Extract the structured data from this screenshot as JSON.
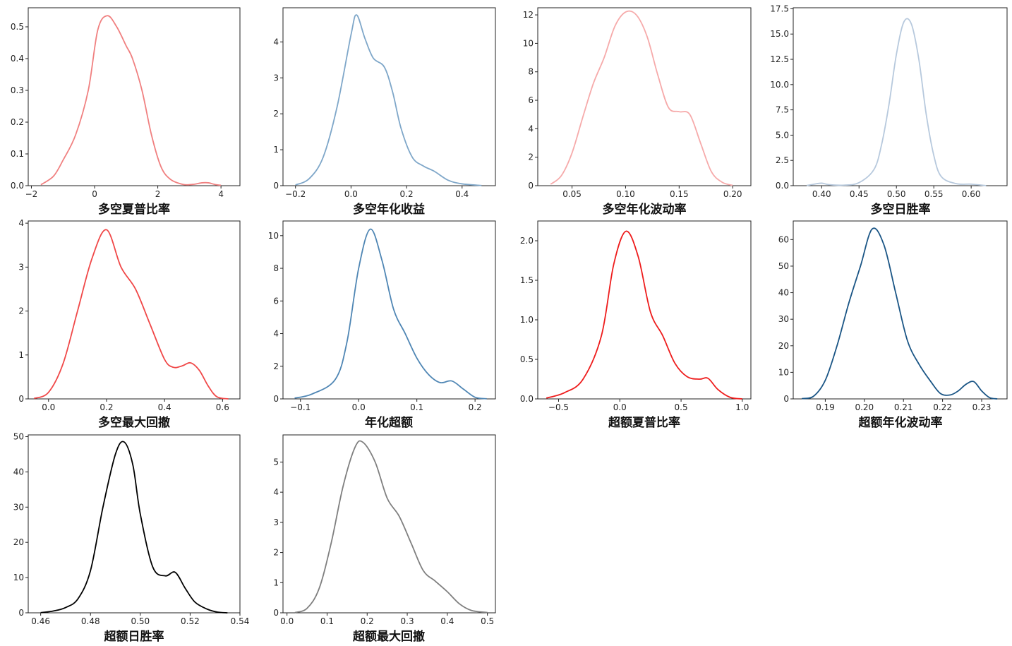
{
  "chart_data": [
    {
      "type": "line",
      "title": "",
      "xlabel": "多空夏普比率",
      "ylabel": "",
      "color": "#f08080",
      "xlim": [
        -2.1,
        4.6
      ],
      "ylim": [
        0,
        0.56
      ],
      "xticks": [
        {
          "v": -2,
          "label": "−2"
        },
        {
          "v": 0,
          "label": "0"
        },
        {
          "v": 2,
          "label": "2"
        },
        {
          "v": 4,
          "label": "4"
        }
      ],
      "yticks": [
        {
          "v": 0,
          "label": "0.0"
        },
        {
          "v": 0.1,
          "label": "0.1"
        },
        {
          "v": 0.2,
          "label": "0.2"
        },
        {
          "v": 0.3,
          "label": "0.3"
        },
        {
          "v": 0.4,
          "label": "0.4"
        },
        {
          "v": 0.5,
          "label": "0.5"
        }
      ],
      "x": [
        -1.7,
        -1.3,
        -1.0,
        -0.6,
        -0.2,
        0.1,
        0.4,
        0.7,
        1.0,
        1.2,
        1.5,
        1.8,
        2.1,
        2.4,
        2.8,
        3.1,
        3.4,
        3.6,
        3.8,
        4.0
      ],
      "y": [
        0.003,
        0.03,
        0.08,
        0.16,
        0.3,
        0.49,
        0.535,
        0.5,
        0.44,
        0.4,
        0.3,
        0.16,
        0.06,
        0.02,
        0.004,
        0.004,
        0.009,
        0.009,
        0.004,
        0.001
      ]
    },
    {
      "type": "line",
      "title": "",
      "xlabel": "多空年化收益",
      "ylabel": "",
      "color": "#7fa7c9",
      "xlim": [
        -0.245,
        0.52
      ],
      "ylim": [
        0,
        4.95
      ],
      "xticks": [
        {
          "v": -0.2,
          "label": "−0.2"
        },
        {
          "v": 0.0,
          "label": "0.0"
        },
        {
          "v": 0.2,
          "label": "0.2"
        },
        {
          "v": 0.4,
          "label": "0.4"
        }
      ],
      "yticks": [
        {
          "v": 0,
          "label": "0"
        },
        {
          "v": 1,
          "label": "1"
        },
        {
          "v": 2,
          "label": "2"
        },
        {
          "v": 3,
          "label": "3"
        },
        {
          "v": 4,
          "label": "4"
        }
      ],
      "x": [
        -0.2,
        -0.15,
        -0.1,
        -0.05,
        0.0,
        0.02,
        0.05,
        0.08,
        0.12,
        0.15,
        0.18,
        0.22,
        0.26,
        0.3,
        0.35,
        0.4,
        0.47
      ],
      "y": [
        0.02,
        0.2,
        0.8,
        2.2,
        4.2,
        4.75,
        4.1,
        3.55,
        3.3,
        2.6,
        1.6,
        0.8,
        0.55,
        0.4,
        0.15,
        0.05,
        0.005
      ]
    },
    {
      "type": "line",
      "title": "",
      "xlabel": "多空年化波动率",
      "ylabel": "",
      "color": "#f6aaaa",
      "xlim": [
        0.018,
        0.217
      ],
      "ylim": [
        0,
        12.5
      ],
      "xticks": [
        {
          "v": 0.05,
          "label": "0.05"
        },
        {
          "v": 0.1,
          "label": "0.10"
        },
        {
          "v": 0.15,
          "label": "0.15"
        },
        {
          "v": 0.2,
          "label": "0.20"
        }
      ],
      "yticks": [
        {
          "v": 0,
          "label": "0"
        },
        {
          "v": 2,
          "label": "2"
        },
        {
          "v": 4,
          "label": "4"
        },
        {
          "v": 6,
          "label": "6"
        },
        {
          "v": 8,
          "label": "8"
        },
        {
          "v": 10,
          "label": "10"
        },
        {
          "v": 12,
          "label": "12"
        }
      ],
      "x": [
        0.03,
        0.04,
        0.05,
        0.06,
        0.07,
        0.08,
        0.09,
        0.1,
        0.11,
        0.12,
        0.13,
        0.14,
        0.15,
        0.16,
        0.17,
        0.18,
        0.19,
        0.2
      ],
      "y": [
        0.1,
        0.7,
        2.3,
        4.8,
        7.2,
        9.0,
        11.2,
        12.2,
        12.0,
        10.5,
        7.8,
        5.5,
        5.2,
        5.0,
        3.0,
        1.0,
        0.25,
        0.02
      ]
    },
    {
      "type": "line",
      "title": "",
      "xlabel": "多空日胜率",
      "ylabel": "",
      "color": "#b7c9dd",
      "xlim": [
        0.362,
        0.648
      ],
      "ylim": [
        0,
        17.6
      ],
      "xticks": [
        {
          "v": 0.4,
          "label": "0.40"
        },
        {
          "v": 0.45,
          "label": "0.45"
        },
        {
          "v": 0.5,
          "label": "0.50"
        },
        {
          "v": 0.55,
          "label": "0.55"
        },
        {
          "v": 0.6,
          "label": "0.60"
        }
      ],
      "yticks": [
        {
          "v": 0,
          "label": "0.0"
        },
        {
          "v": 2.5,
          "label": "2.5"
        },
        {
          "v": 5,
          "label": "5.0"
        },
        {
          "v": 7.5,
          "label": "7.5"
        },
        {
          "v": 10,
          "label": "10.0"
        },
        {
          "v": 12.5,
          "label": "12.5"
        },
        {
          "v": 15,
          "label": "15.0"
        },
        {
          "v": 17.5,
          "label": "17.5"
        }
      ],
      "x": [
        0.38,
        0.39,
        0.4,
        0.41,
        0.43,
        0.45,
        0.47,
        0.48,
        0.49,
        0.5,
        0.51,
        0.52,
        0.53,
        0.54,
        0.55,
        0.56,
        0.58,
        0.6,
        0.62
      ],
      "y": [
        0.02,
        0.15,
        0.25,
        0.1,
        0.05,
        0.3,
        1.6,
        4.0,
        8.0,
        13.0,
        16.2,
        16.0,
        12.5,
        7.0,
        3.0,
        0.9,
        0.2,
        0.15,
        0.01
      ]
    },
    {
      "type": "line",
      "title": "",
      "xlabel": "多空最大回撤",
      "ylabel": "",
      "color": "#f04848",
      "xlim": [
        -0.07,
        0.66
      ],
      "ylim": [
        0,
        4.05
      ],
      "xticks": [
        {
          "v": 0.0,
          "label": "0.0"
        },
        {
          "v": 0.2,
          "label": "0.2"
        },
        {
          "v": 0.4,
          "label": "0.4"
        },
        {
          "v": 0.6,
          "label": "0.6"
        }
      ],
      "yticks": [
        {
          "v": 0,
          "label": "0"
        },
        {
          "v": 1,
          "label": "1"
        },
        {
          "v": 2,
          "label": "2"
        },
        {
          "v": 3,
          "label": "3"
        },
        {
          "v": 4,
          "label": "4"
        }
      ],
      "x": [
        -0.05,
        0.0,
        0.05,
        0.1,
        0.15,
        0.2,
        0.25,
        0.3,
        0.35,
        0.4,
        0.43,
        0.46,
        0.49,
        0.52,
        0.55,
        0.58,
        0.62
      ],
      "y": [
        0.01,
        0.15,
        0.8,
        2.0,
        3.2,
        3.85,
        3.0,
        2.5,
        1.7,
        0.9,
        0.72,
        0.75,
        0.82,
        0.65,
        0.3,
        0.05,
        0.0
      ]
    },
    {
      "type": "line",
      "title": "",
      "xlabel": "年化超额",
      "ylabel": "",
      "color": "#4f86b4",
      "xlim": [
        -0.13,
        0.235
      ],
      "ylim": [
        0,
        10.9
      ],
      "xticks": [
        {
          "v": -0.1,
          "label": "−0.1"
        },
        {
          "v": 0.0,
          "label": "0.0"
        },
        {
          "v": 0.1,
          "label": "0.1"
        },
        {
          "v": 0.2,
          "label": "0.2"
        }
      ],
      "yticks": [
        {
          "v": 0,
          "label": "0"
        },
        {
          "v": 2,
          "label": "2"
        },
        {
          "v": 4,
          "label": "4"
        },
        {
          "v": 6,
          "label": "6"
        },
        {
          "v": 8,
          "label": "8"
        },
        {
          "v": 10,
          "label": "10"
        }
      ],
      "x": [
        -0.11,
        -0.08,
        -0.04,
        -0.02,
        0.0,
        0.02,
        0.04,
        0.06,
        0.08,
        0.1,
        0.12,
        0.14,
        0.16,
        0.18,
        0.2,
        0.22
      ],
      "y": [
        0.05,
        0.3,
        1.2,
        3.5,
        8.0,
        10.4,
        8.5,
        5.5,
        4.0,
        2.5,
        1.5,
        1.0,
        1.1,
        0.6,
        0.1,
        0.01
      ]
    },
    {
      "type": "line",
      "title": "",
      "xlabel": "超额夏普比率",
      "ylabel": "",
      "color": "#ee1c1c",
      "xlim": [
        -0.67,
        1.07
      ],
      "ylim": [
        0,
        2.25
      ],
      "xticks": [
        {
          "v": -0.5,
          "label": "−0.5"
        },
        {
          "v": 0.0,
          "label": "0.0"
        },
        {
          "v": 0.5,
          "label": "0.5"
        },
        {
          "v": 1.0,
          "label": "1.0"
        }
      ],
      "yticks": [
        {
          "v": 0,
          "label": "0.0"
        },
        {
          "v": 0.5,
          "label": "0.5"
        },
        {
          "v": 1.0,
          "label": "1.0"
        },
        {
          "v": 1.5,
          "label": "1.5"
        },
        {
          "v": 2.0,
          "label": "2.0"
        }
      ],
      "x": [
        -0.6,
        -0.45,
        -0.3,
        -0.15,
        -0.05,
        0.05,
        0.15,
        0.25,
        0.35,
        0.45,
        0.55,
        0.65,
        0.72,
        0.8,
        0.9,
        1.0
      ],
      "y": [
        0.01,
        0.08,
        0.25,
        0.8,
        1.7,
        2.12,
        1.8,
        1.1,
        0.8,
        0.45,
        0.28,
        0.25,
        0.26,
        0.12,
        0.02,
        0.0
      ]
    },
    {
      "type": "line",
      "title": "",
      "xlabel": "超额年化波动率",
      "ylabel": "",
      "color": "#1a5585",
      "xlim": [
        0.1818,
        0.2365
      ],
      "ylim": [
        0,
        67
      ],
      "xticks": [
        {
          "v": 0.19,
          "label": "0.19"
        },
        {
          "v": 0.2,
          "label": "0.20"
        },
        {
          "v": 0.21,
          "label": "0.21"
        },
        {
          "v": 0.22,
          "label": "0.22"
        },
        {
          "v": 0.23,
          "label": "0.23"
        }
      ],
      "yticks": [
        {
          "v": 0,
          "label": "0"
        },
        {
          "v": 10,
          "label": "10"
        },
        {
          "v": 20,
          "label": "20"
        },
        {
          "v": 30,
          "label": "30"
        },
        {
          "v": 40,
          "label": "40"
        },
        {
          "v": 50,
          "label": "50"
        },
        {
          "v": 60,
          "label": "60"
        }
      ],
      "x": [
        0.184,
        0.187,
        0.19,
        0.193,
        0.196,
        0.199,
        0.202,
        0.205,
        0.208,
        0.211,
        0.214,
        0.217,
        0.2195,
        0.222,
        0.224,
        0.226,
        0.228,
        0.23,
        0.232,
        0.234
      ],
      "y": [
        0.1,
        1.0,
        7.0,
        20.0,
        36.0,
        50.0,
        64.0,
        58.0,
        40.0,
        22.0,
        13.0,
        6.5,
        2.0,
        1.5,
        3.0,
        5.5,
        6.5,
        3.0,
        0.5,
        0.0
      ]
    },
    {
      "type": "line",
      "title": "",
      "xlabel": "超额日胜率",
      "ylabel": "",
      "color": "#000000",
      "xlim": [
        0.455,
        0.54
      ],
      "ylim": [
        0,
        50.5
      ],
      "xticks": [
        {
          "v": 0.46,
          "label": "0.46"
        },
        {
          "v": 0.48,
          "label": "0.48"
        },
        {
          "v": 0.5,
          "label": "0.50"
        },
        {
          "v": 0.52,
          "label": "0.52"
        },
        {
          "v": 0.54,
          "label": "0.54"
        }
      ],
      "yticks": [
        {
          "v": 0,
          "label": "0"
        },
        {
          "v": 10,
          "label": "10"
        },
        {
          "v": 20,
          "label": "20"
        },
        {
          "v": 30,
          "label": "30"
        },
        {
          "v": 40,
          "label": "40"
        },
        {
          "v": 50,
          "label": "50"
        }
      ],
      "x": [
        0.46,
        0.465,
        0.47,
        0.475,
        0.48,
        0.485,
        0.49,
        0.4935,
        0.497,
        0.5,
        0.505,
        0.51,
        0.514,
        0.518,
        0.522,
        0.527,
        0.531,
        0.535
      ],
      "y": [
        0.05,
        0.5,
        1.5,
        4.0,
        12.0,
        30.0,
        45.0,
        48.5,
        42.0,
        28.0,
        13.0,
        10.5,
        11.5,
        7.0,
        3.0,
        1.0,
        0.2,
        0.0
      ]
    },
    {
      "type": "line",
      "title": "",
      "xlabel": "超额最大回撤",
      "ylabel": "",
      "color": "#7f7f7f",
      "xlim": [
        -0.01,
        0.52
      ],
      "ylim": [
        0,
        5.9
      ],
      "xticks": [
        {
          "v": 0.0,
          "label": "0.0"
        },
        {
          "v": 0.1,
          "label": "0.1"
        },
        {
          "v": 0.2,
          "label": "0.2"
        },
        {
          "v": 0.3,
          "label": "0.3"
        },
        {
          "v": 0.4,
          "label": "0.4"
        },
        {
          "v": 0.5,
          "label": "0.5"
        }
      ],
      "yticks": [
        {
          "v": 0,
          "label": "0"
        },
        {
          "v": 1,
          "label": "1"
        },
        {
          "v": 2,
          "label": "2"
        },
        {
          "v": 3,
          "label": "3"
        },
        {
          "v": 4,
          "label": "4"
        },
        {
          "v": 5,
          "label": "5"
        }
      ],
      "x": [
        0.02,
        0.05,
        0.08,
        0.11,
        0.14,
        0.17,
        0.19,
        0.22,
        0.25,
        0.28,
        0.31,
        0.34,
        0.37,
        0.4,
        0.43,
        0.46,
        0.5
      ],
      "y": [
        0.01,
        0.15,
        0.8,
        2.3,
        4.2,
        5.5,
        5.65,
        5.0,
        3.8,
        3.2,
        2.3,
        1.4,
        1.05,
        0.7,
        0.3,
        0.08,
        0.01
      ]
    }
  ]
}
